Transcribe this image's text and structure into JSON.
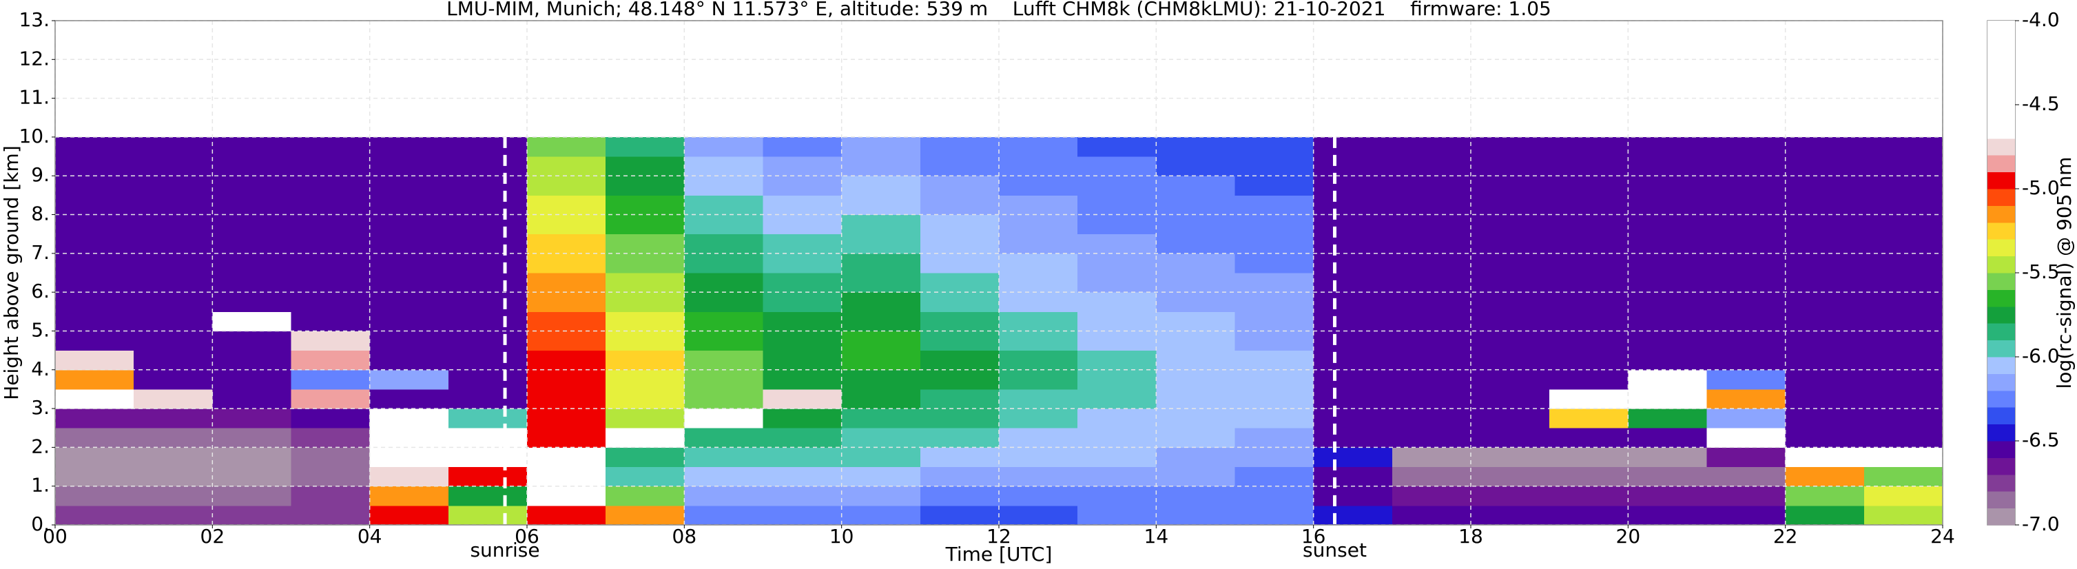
{
  "chart_data": {
    "type": "heatmap",
    "title": "LMU-MIM, Munich; 48.148° N 11.573° E, altitude: 539 m    Lufft CHM8k (CHM8kLMU): 21-10-2021    firmware: 1.05",
    "xlabel": "Time [UTC]",
    "ylabel": "Height above ground [km]",
    "colorbar_label": "log(rc-signal) @ 905 nm",
    "xlim": [
      0,
      24
    ],
    "ylim": [
      0,
      13
    ],
    "xticks": [
      {
        "value": 0,
        "label": "00"
      },
      {
        "value": 2,
        "label": "02"
      },
      {
        "value": 4,
        "label": "04"
      },
      {
        "value": 6,
        "label": "06"
      },
      {
        "value": 8,
        "label": "08"
      },
      {
        "value": 10,
        "label": "10"
      },
      {
        "value": 12,
        "label": "12"
      },
      {
        "value": 14,
        "label": "14"
      },
      {
        "value": 16,
        "label": "16"
      },
      {
        "value": 18,
        "label": "18"
      },
      {
        "value": 20,
        "label": "20"
      },
      {
        "value": 22,
        "label": "22"
      },
      {
        "value": 24,
        "label": "24"
      }
    ],
    "yticks": [
      {
        "value": 0,
        "label": "0."
      },
      {
        "value": 1,
        "label": "1."
      },
      {
        "value": 2,
        "label": "2."
      },
      {
        "value": 3,
        "label": "3."
      },
      {
        "value": 4,
        "label": "4."
      },
      {
        "value": 5,
        "label": "5."
      },
      {
        "value": 6,
        "label": "6."
      },
      {
        "value": 7,
        "label": "7."
      },
      {
        "value": 8,
        "label": "8."
      },
      {
        "value": 9,
        "label": "9."
      },
      {
        "value": 10,
        "label": "10."
      },
      {
        "value": 11,
        "label": "11."
      },
      {
        "value": 12,
        "label": "12."
      },
      {
        "value": 13,
        "label": "13."
      }
    ],
    "grid": true,
    "xbins": [
      0,
      1,
      2,
      3,
      4,
      5,
      6,
      7,
      8,
      9,
      10,
      11,
      12,
      13,
      14,
      15,
      16,
      17,
      18,
      19,
      20,
      21,
      22,
      23,
      24
    ],
    "ybins": [
      0,
      0.5,
      1,
      1.5,
      2,
      2.5,
      3,
      3.5,
      4,
      4.5,
      5,
      5.5,
      6,
      6.5,
      7,
      7.5,
      8,
      8.5,
      9,
      9.5,
      10
    ],
    "z": [
      [
        -6.8,
        -6.8,
        -6.8,
        -6.8,
        -5.0,
        -5.5,
        -5.0,
        -5.2,
        -6.3,
        -6.3,
        -6.3,
        -6.35,
        -6.35,
        -6.3,
        -6.3,
        -6.3,
        -6.5,
        -6.6,
        -6.6,
        -6.6,
        -6.6,
        -6.6,
        -5.8,
        -5.5
      ],
      [
        -6.85,
        -6.85,
        -6.85,
        -6.8,
        -5.2,
        -5.8,
        -4.6,
        -5.6,
        -6.15,
        -6.15,
        -6.2,
        -6.25,
        -6.25,
        -6.25,
        -6.3,
        -6.3,
        -6.55,
        -6.7,
        -6.7,
        -6.7,
        -6.7,
        -6.7,
        -5.6,
        -5.4
      ],
      [
        -6.95,
        -6.95,
        -6.95,
        -6.9,
        -4.8,
        -5.0,
        -4.5,
        -6.0,
        -6.05,
        -6.05,
        -6.1,
        -6.15,
        -6.2,
        -6.2,
        -6.2,
        -6.25,
        -6.6,
        -6.85,
        -6.85,
        -6.85,
        -6.85,
        -6.85,
        -5.2,
        -5.6
      ],
      [
        -6.95,
        -6.95,
        -6.95,
        -6.9,
        -4.6,
        -4.6,
        -4.5,
        -5.9,
        -5.95,
        -6.0,
        -6.0,
        -6.05,
        -6.1,
        -6.1,
        -6.15,
        -6.2,
        -6.5,
        -6.95,
        -6.95,
        -6.95,
        -6.95,
        -6.7,
        -4.6,
        -4.7
      ],
      [
        -6.9,
        -6.9,
        -6.9,
        -6.8,
        -4.5,
        -4.7,
        -5.0,
        -4.5,
        -5.9,
        -5.9,
        -5.95,
        -6.0,
        -6.05,
        -6.1,
        -6.1,
        -6.15,
        -6.6,
        -6.6,
        -6.6,
        -6.6,
        -6.6,
        -4.7,
        -6.6,
        -6.6
      ],
      [
        -6.7,
        -6.7,
        -6.7,
        -6.6,
        -4.7,
        -6.0,
        -5.0,
        -5.5,
        -4.6,
        -5.8,
        -5.85,
        -5.9,
        -6.0,
        -6.05,
        -6.1,
        -6.1,
        -6.6,
        -6.6,
        -6.6,
        -5.3,
        -5.8,
        -6.2,
        -6.6,
        -6.6
      ],
      [
        -4.7,
        -4.8,
        -6.6,
        -4.9,
        -6.6,
        -6.6,
        -5.0,
        -5.4,
        -5.6,
        -4.8,
        -5.8,
        -5.85,
        -5.95,
        -6.0,
        -6.05,
        -6.1,
        -6.6,
        -6.6,
        -6.6,
        -4.7,
        -4.5,
        -5.2,
        -6.6,
        -6.6
      ],
      [
        -5.2,
        -6.6,
        -6.6,
        -6.3,
        -6.2,
        -6.6,
        -5.0,
        -5.4,
        -5.6,
        -5.75,
        -5.75,
        -5.8,
        -5.9,
        -6.0,
        -6.05,
        -6.1,
        -6.6,
        -6.6,
        -6.6,
        -6.6,
        -4.6,
        -6.3,
        -6.6,
        -6.6
      ],
      [
        -4.8,
        -6.6,
        -6.6,
        -4.9,
        -6.6,
        -6.6,
        -5.0,
        -5.3,
        -5.6,
        -5.75,
        -5.7,
        -5.8,
        -5.9,
        -6.0,
        -6.05,
        -6.1,
        -6.6,
        -6.6,
        -6.6,
        -6.6,
        -6.6,
        -6.6,
        -6.6,
        -6.6
      ],
      [
        -6.6,
        -6.6,
        -6.6,
        -4.8,
        -6.6,
        -6.6,
        -5.05,
        -5.35,
        -5.65,
        -5.8,
        -5.7,
        -5.85,
        -5.95,
        -6.05,
        -6.1,
        -6.15,
        -6.6,
        -6.6,
        -6.6,
        -6.6,
        -6.6,
        -6.6,
        -6.6,
        -6.6
      ],
      [
        -6.6,
        -6.6,
        -4.7,
        -6.6,
        -6.6,
        -6.6,
        -5.1,
        -5.4,
        -5.7,
        -5.8,
        -5.75,
        -5.9,
        -6.0,
        -6.05,
        -6.1,
        -6.15,
        -6.6,
        -6.6,
        -6.6,
        -6.6,
        -6.6,
        -6.6,
        -6.6,
        -6.6
      ],
      [
        -6.6,
        -6.6,
        -6.6,
        -6.6,
        -6.6,
        -6.6,
        -5.15,
        -5.45,
        -5.75,
        -5.85,
        -5.8,
        -5.95,
        -6.05,
        -6.1,
        -6.15,
        -6.2,
        -6.6,
        -6.6,
        -6.6,
        -6.6,
        -6.6,
        -6.6,
        -6.6,
        -6.6
      ],
      [
        -6.6,
        -6.6,
        -6.6,
        -6.6,
        -6.6,
        -6.6,
        -5.2,
        -5.5,
        -5.8,
        -5.9,
        -5.85,
        -6.0,
        -6.1,
        -6.15,
        -6.2,
        -6.2,
        -6.6,
        -6.6,
        -6.6,
        -6.6,
        -6.6,
        -6.6,
        -6.6,
        -6.6
      ],
      [
        -6.6,
        -6.6,
        -6.6,
        -6.6,
        -6.6,
        -6.6,
        -5.25,
        -5.55,
        -5.85,
        -5.95,
        -5.9,
        -6.05,
        -6.1,
        -6.15,
        -6.2,
        -6.25,
        -6.6,
        -6.6,
        -6.6,
        -6.6,
        -6.6,
        -6.6,
        -6.6,
        -6.6
      ],
      [
        -6.6,
        -6.6,
        -6.6,
        -6.6,
        -6.6,
        -6.6,
        -5.3,
        -5.6,
        -5.9,
        -6.0,
        -5.95,
        -6.1,
        -6.15,
        -6.2,
        -6.25,
        -6.25,
        -6.6,
        -6.6,
        -6.6,
        -6.6,
        -6.6,
        -6.6,
        -6.6,
        -6.6
      ],
      [
        -6.6,
        -6.6,
        -6.6,
        -6.6,
        -6.6,
        -6.6,
        -5.35,
        -5.65,
        -5.95,
        -6.05,
        -6.0,
        -6.1,
        -6.2,
        -6.25,
        -6.25,
        -6.3,
        -6.6,
        -6.6,
        -6.6,
        -6.6,
        -6.6,
        -6.6,
        -6.6,
        -6.6
      ],
      [
        -6.6,
        -6.6,
        -6.6,
        -6.6,
        -6.6,
        -6.6,
        -5.4,
        -5.7,
        -6.0,
        -6.1,
        -6.05,
        -6.15,
        -6.2,
        -6.25,
        -6.3,
        -6.3,
        -6.6,
        -6.6,
        -6.6,
        -6.6,
        -6.6,
        -6.6,
        -6.6,
        -6.6
      ],
      [
        -6.6,
        -6.6,
        -6.6,
        -6.6,
        -6.6,
        -6.6,
        -5.45,
        -5.75,
        -6.05,
        -6.15,
        -6.1,
        -6.2,
        -6.25,
        -6.3,
        -6.3,
        -6.35,
        -6.6,
        -6.6,
        -6.6,
        -6.6,
        -6.6,
        -6.6,
        -6.6,
        -6.6
      ],
      [
        -6.6,
        -6.6,
        -6.6,
        -6.6,
        -6.6,
        -6.6,
        -5.5,
        -5.8,
        -6.1,
        -6.2,
        -6.15,
        -6.25,
        -6.3,
        -6.3,
        -6.35,
        -6.35,
        -6.6,
        -6.6,
        -6.6,
        -6.6,
        -6.6,
        -6.6,
        -6.6,
        -6.6
      ],
      [
        -6.6,
        -6.6,
        -6.6,
        -6.6,
        -6.6,
        -6.6,
        -5.55,
        -5.85,
        -6.15,
        -6.25,
        -6.2,
        -6.3,
        -6.3,
        -6.35,
        -6.35,
        -6.4,
        -6.6,
        -6.6,
        -6.6,
        -6.6,
        -6.6,
        -6.6,
        -6.6,
        -6.6
      ]
    ],
    "colorbar": {
      "levels": [
        -7.0,
        -6.9,
        -6.8,
        -6.7,
        -6.6,
        -6.5,
        -6.4,
        -6.3,
        -6.2,
        -6.1,
        -6.0,
        -5.9,
        -5.8,
        -5.7,
        -5.6,
        -5.5,
        -5.4,
        -5.3,
        -5.2,
        -5.1,
        -5.0,
        -4.9,
        -4.8,
        -4.7,
        -4.6,
        -4.5,
        -4.4,
        -4.3,
        -4.2,
        -4.1,
        -4.0
      ],
      "colors": [
        "#aa94aa",
        "#966e9e",
        "#823c96",
        "#6e1496",
        "#5000a0",
        "#1e14d2",
        "#3250f0",
        "#6482ff",
        "#8ca5ff",
        "#a5c3ff",
        "#50c8b4",
        "#28b478",
        "#14a03c",
        "#28b428",
        "#78d250",
        "#b4e63c",
        "#e6f03c",
        "#ffd228",
        "#ff9614",
        "#ff4b0a",
        "#f00000",
        "#f0a0a0",
        "#f0d8d8",
        "#ffffff",
        "#ffffff",
        "#ffffff",
        "#ffffff",
        "#ffffff",
        "#ffffff",
        "#ffffff"
      ],
      "ticks": [
        {
          "value": -4.0,
          "label": "-4.0"
        },
        {
          "value": -4.5,
          "label": "-4.5"
        },
        {
          "value": -5.0,
          "label": "-5.0"
        },
        {
          "value": -5.5,
          "label": "-5.5"
        },
        {
          "value": -6.0,
          "label": "-6.0"
        },
        {
          "value": -6.5,
          "label": "-6.5"
        },
        {
          "value": -7.0,
          "label": "-7.0"
        }
      ]
    },
    "annotations": [
      {
        "label": "sunrise",
        "x": 5.72
      },
      {
        "label": "sunset",
        "x": 16.27
      }
    ]
  }
}
